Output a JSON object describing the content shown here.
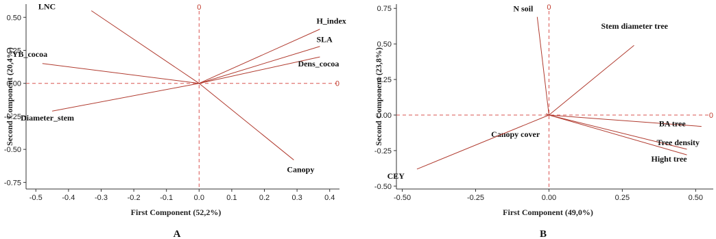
{
  "colors": {
    "vector": "#b03a2e",
    "refline": "#d9534f",
    "frame": "#333333"
  },
  "chart_data": [
    {
      "type": "scatter",
      "panel_label": "A",
      "xlabel": "First Component (52,2%)",
      "ylabel": "Second Component (20,4%)",
      "xlim": [
        -0.53,
        0.43
      ],
      "ylim": [
        -0.8,
        0.6
      ],
      "xticks": [
        "-0.5",
        "-0.4",
        "-0.3",
        "-0.2",
        "-0.1",
        "0.0",
        "0.1",
        "0.2",
        "0.3",
        "0.4"
      ],
      "yticks": [
        "-0.75",
        "-0.50",
        "-0.25",
        "0.00",
        "0.25",
        "0.50"
      ],
      "ref_label": "0",
      "vectors": [
        {
          "name": "LNC",
          "x": -0.33,
          "y": 0.55
        },
        {
          "name": "H_index",
          "x": 0.37,
          "y": 0.41
        },
        {
          "name": "SLA",
          "x": 0.37,
          "y": 0.28
        },
        {
          "name": "Dens_cocoa",
          "x": 0.37,
          "y": 0.2
        },
        {
          "name": "YB_cocoa",
          "x": -0.48,
          "y": 0.15
        },
        {
          "name": "Diameter_stem",
          "x": -0.45,
          "y": -0.21
        },
        {
          "name": "Canopy",
          "x": 0.29,
          "y": -0.58
        }
      ]
    },
    {
      "type": "scatter",
      "panel_label": "B",
      "xlabel": "First Component (49,0%)",
      "ylabel": "Second Component (23,8%)",
      "xlim": [
        -0.52,
        0.56
      ],
      "ylim": [
        -0.52,
        0.78
      ],
      "xticks": [
        "-0.50",
        "-0.25",
        "0.00",
        "0.25",
        "0.50"
      ],
      "yticks": [
        "-0.50",
        "-0.25",
        "0.00",
        "0.25",
        "0.50",
        "0.75"
      ],
      "ref_label": "0",
      "vectors": [
        {
          "name": "N soil",
          "x": -0.04,
          "y": 0.69
        },
        {
          "name": "Stem diameter tree",
          "x": 0.29,
          "y": 0.49
        },
        {
          "name": "BA tree",
          "x": 0.52,
          "y": -0.08
        },
        {
          "name": "Tree density",
          "x": 0.47,
          "y": -0.24
        },
        {
          "name": "Hight tree",
          "x": 0.47,
          "y": -0.28
        },
        {
          "name": "Canopy cover",
          "x": -0.01,
          "y": 0.01
        },
        {
          "name": "CEY",
          "x": -0.45,
          "y": -0.38
        }
      ]
    }
  ]
}
